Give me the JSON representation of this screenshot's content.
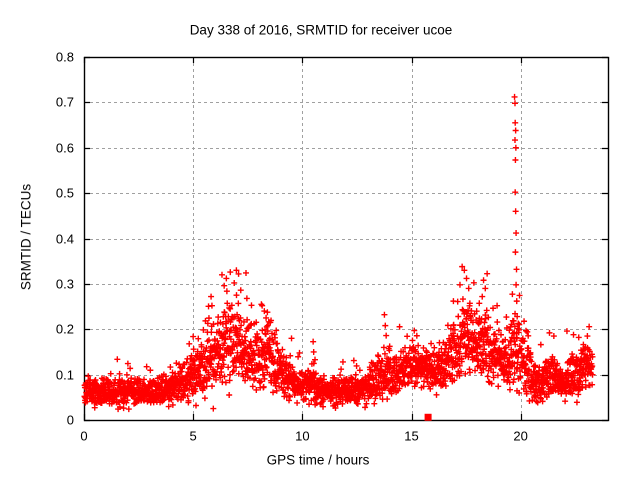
{
  "figure": {
    "background": "#ffffff",
    "text_color": "#000000"
  },
  "chart_data": {
    "type": "scatter",
    "title": "Day 338 of 2016, SRMTID for receiver ucoe",
    "xlabel": "GPS time / hours",
    "ylabel": "SRMTID / TECUs",
    "xlim": [
      0,
      24
    ],
    "ylim": [
      0,
      0.8
    ],
    "xticks": {
      "values": [
        0,
        5,
        10,
        15,
        20
      ],
      "labels": [
        "0",
        "5",
        "10",
        "15",
        "20"
      ]
    },
    "yticks": {
      "values": [
        0,
        0.1,
        0.2,
        0.3,
        0.4,
        0.5,
        0.6,
        0.7,
        0.8
      ],
      "labels": [
        "0",
        "0.1",
        "0.2",
        "0.3",
        "0.4",
        "0.5",
        "0.6",
        "0.7",
        "0.8"
      ]
    },
    "grid": {
      "show": true,
      "style": "dashed",
      "color": "#a0a0a0"
    },
    "axis_color": "#000000",
    "legend": "none",
    "series": [
      {
        "name": "SRMTID",
        "marker": {
          "shape": "plus",
          "color": "#ff0000",
          "size": 7
        },
        "points_per_hour": 120,
        "t_range": [
          0.02,
          23.3
        ],
        "envelope": {
          "t": [
            0.0,
            0.5,
            1.0,
            1.5,
            2.0,
            2.5,
            3.0,
            3.5,
            4.0,
            4.4,
            4.8,
            5.2,
            5.6,
            6.0,
            6.4,
            6.8,
            7.2,
            7.6,
            8.0,
            8.4,
            8.8,
            9.2,
            9.6,
            10.0,
            10.5,
            11.0,
            11.5,
            12.0,
            12.4,
            12.8,
            13.2,
            13.6,
            13.9,
            14.2,
            14.6,
            15.0,
            15.4,
            15.8,
            16.2,
            16.6,
            17.0,
            17.4,
            17.8,
            18.1,
            18.4,
            18.8,
            19.1,
            19.4,
            19.7,
            19.9,
            20.2,
            20.5,
            20.8,
            21.1,
            21.4,
            21.8,
            22.2,
            22.6,
            23.0,
            23.3
          ],
          "center": [
            0.06,
            0.062,
            0.065,
            0.06,
            0.062,
            0.065,
            0.06,
            0.065,
            0.07,
            0.08,
            0.095,
            0.11,
            0.125,
            0.145,
            0.165,
            0.175,
            0.17,
            0.15,
            0.135,
            0.15,
            0.115,
            0.1,
            0.085,
            0.07,
            0.075,
            0.062,
            0.066,
            0.062,
            0.066,
            0.072,
            0.082,
            0.095,
            0.115,
            0.1,
            0.105,
            0.115,
            0.12,
            0.11,
            0.112,
            0.125,
            0.15,
            0.185,
            0.16,
            0.165,
            0.16,
            0.14,
            0.135,
            0.13,
            0.16,
            0.15,
            0.115,
            0.09,
            0.075,
            0.085,
            0.1,
            0.085,
            0.09,
            0.105,
            0.115,
            0.12
          ],
          "spread": [
            0.028,
            0.03,
            0.03,
            0.03,
            0.03,
            0.03,
            0.03,
            0.03,
            0.035,
            0.04,
            0.05,
            0.055,
            0.065,
            0.075,
            0.085,
            0.09,
            0.085,
            0.075,
            0.07,
            0.08,
            0.06,
            0.05,
            0.042,
            0.032,
            0.04,
            0.028,
            0.03,
            0.028,
            0.03,
            0.034,
            0.04,
            0.05,
            0.06,
            0.045,
            0.045,
            0.05,
            0.045,
            0.042,
            0.045,
            0.055,
            0.07,
            0.09,
            0.08,
            0.08,
            0.075,
            0.06,
            0.06,
            0.06,
            0.075,
            0.08,
            0.06,
            0.05,
            0.038,
            0.045,
            0.05,
            0.04,
            0.045,
            0.05,
            0.045,
            0.042
          ]
        },
        "outliers": [
          [
            5.82,
            0.272
          ],
          [
            5.86,
            0.252
          ],
          [
            6.32,
            0.32
          ],
          [
            6.42,
            0.296
          ],
          [
            6.52,
            0.312
          ],
          [
            6.7,
            0.326
          ],
          [
            6.88,
            0.302
          ],
          [
            6.98,
            0.33
          ],
          [
            7.08,
            0.322
          ],
          [
            7.18,
            0.286
          ],
          [
            7.42,
            0.324
          ],
          [
            7.46,
            0.268
          ],
          [
            8.16,
            0.252
          ],
          [
            8.26,
            0.24
          ],
          [
            8.34,
            0.225
          ],
          [
            10.52,
            0.15
          ],
          [
            10.58,
            0.133
          ],
          [
            11.86,
            0.128
          ],
          [
            13.76,
            0.232
          ],
          [
            13.8,
            0.208
          ],
          [
            13.84,
            0.186
          ],
          [
            16.92,
            0.262
          ],
          [
            17.22,
            0.298
          ],
          [
            17.32,
            0.338
          ],
          [
            17.42,
            0.33
          ],
          [
            17.52,
            0.312
          ],
          [
            17.62,
            0.29
          ],
          [
            18.24,
            0.272
          ],
          [
            18.3,
            0.308
          ],
          [
            18.38,
            0.29
          ],
          [
            18.92,
            0.252
          ],
          [
            19.72,
            0.712
          ],
          [
            19.74,
            0.698
          ],
          [
            19.75,
            0.655
          ],
          [
            19.77,
            0.638
          ],
          [
            19.74,
            0.617
          ],
          [
            19.78,
            0.6
          ],
          [
            19.76,
            0.573
          ],
          [
            19.75,
            0.502
          ],
          [
            19.77,
            0.46
          ],
          [
            19.79,
            0.412
          ],
          [
            19.76,
            0.37
          ],
          [
            19.81,
            0.332
          ],
          [
            19.79,
            0.298
          ],
          [
            19.82,
            0.262
          ],
          [
            19.84,
            0.228
          ],
          [
            21.32,
            0.192
          ],
          [
            21.52,
            0.185
          ],
          [
            22.12,
            0.196
          ],
          [
            22.42,
            0.188
          ],
          [
            22.66,
            0.182
          ]
        ]
      },
      {
        "name": "flag-square",
        "marker": {
          "shape": "square",
          "color": "#ff0000",
          "size": 7
        },
        "points": [
          [
            15.76,
            0.006
          ]
        ]
      }
    ]
  }
}
